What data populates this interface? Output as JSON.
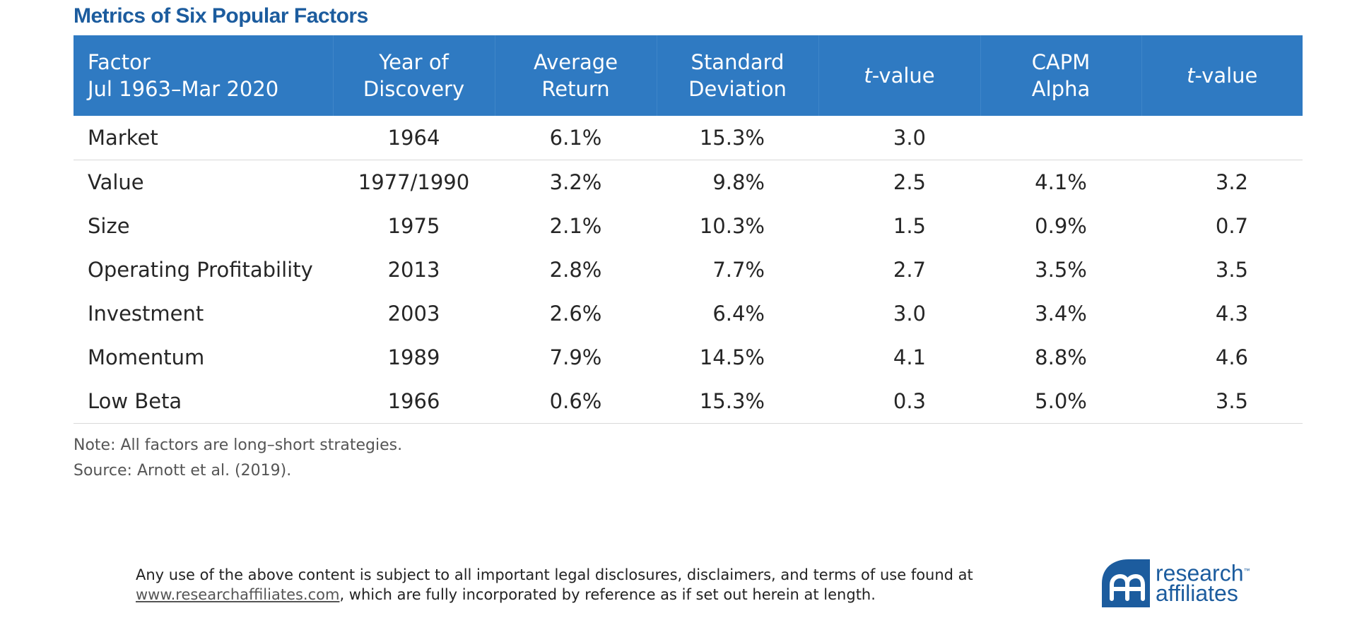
{
  "title": "Metrics of Six Popular Factors",
  "table": {
    "headers": [
      {
        "line1": "Factor",
        "line2": "Jul 1963–Mar 2020"
      },
      {
        "line1": "Year of",
        "line2": "Discovery"
      },
      {
        "line1": "Average",
        "line2": "Return"
      },
      {
        "line1": "Standard",
        "line2": "Deviation"
      },
      {
        "italic": "t",
        "rest": "-value"
      },
      {
        "line1": "CAPM",
        "line2": "Alpha"
      },
      {
        "italic": "t",
        "rest": "-value"
      }
    ],
    "rows": [
      {
        "factor": "Market",
        "year": "1964",
        "avg": "6.1%",
        "std": "15.3%",
        "t1": "3.0",
        "alpha": "",
        "t2": ""
      },
      {
        "factor": "Value",
        "year": "1977/1990",
        "avg": "3.2%",
        "std": "9.8%",
        "t1": "2.5",
        "alpha": "4.1%",
        "t2": "3.2"
      },
      {
        "factor": "Size",
        "year": "1975",
        "avg": "2.1%",
        "std": "10.3%",
        "t1": "1.5",
        "alpha": "0.9%",
        "t2": "0.7"
      },
      {
        "factor": "Operating Profitability",
        "year": "2013",
        "avg": "2.8%",
        "std": "7.7%",
        "t1": "2.7",
        "alpha": "3.5%",
        "t2": "3.5"
      },
      {
        "factor": "Investment",
        "year": "2003",
        "avg": "2.6%",
        "std": "6.4%",
        "t1": "3.0",
        "alpha": "3.4%",
        "t2": "4.3"
      },
      {
        "factor": "Momentum",
        "year": "1989",
        "avg": "7.9%",
        "std": "14.5%",
        "t1": "4.1",
        "alpha": "8.8%",
        "t2": "4.6"
      },
      {
        "factor": "Low Beta",
        "year": "1966",
        "avg": "0.6%",
        "std": "15.3%",
        "t1": "0.3",
        "alpha": "5.0%",
        "t2": "3.5"
      }
    ]
  },
  "note": "Note: All factors are long–short strategies.",
  "source": "Source: Arnott et al. (2019).",
  "disclaimer": {
    "line1": "Any use of the above content is subject to all important legal disclosures, disclaimers, and terms of use found at",
    "link": "www.researchaffiliates.com",
    "line2_rest": ", which are fully incorporated by reference as if set out herein at length."
  },
  "logo": {
    "word1": "research",
    "tm": "™",
    "word2": "affiliates",
    "icon": "research-affiliates-logo-icon"
  },
  "colors": {
    "title": "#1c5c9e",
    "header_bg": "#2f7ac2",
    "header_text": "#ffffff",
    "brand": "#1c5c9e"
  }
}
